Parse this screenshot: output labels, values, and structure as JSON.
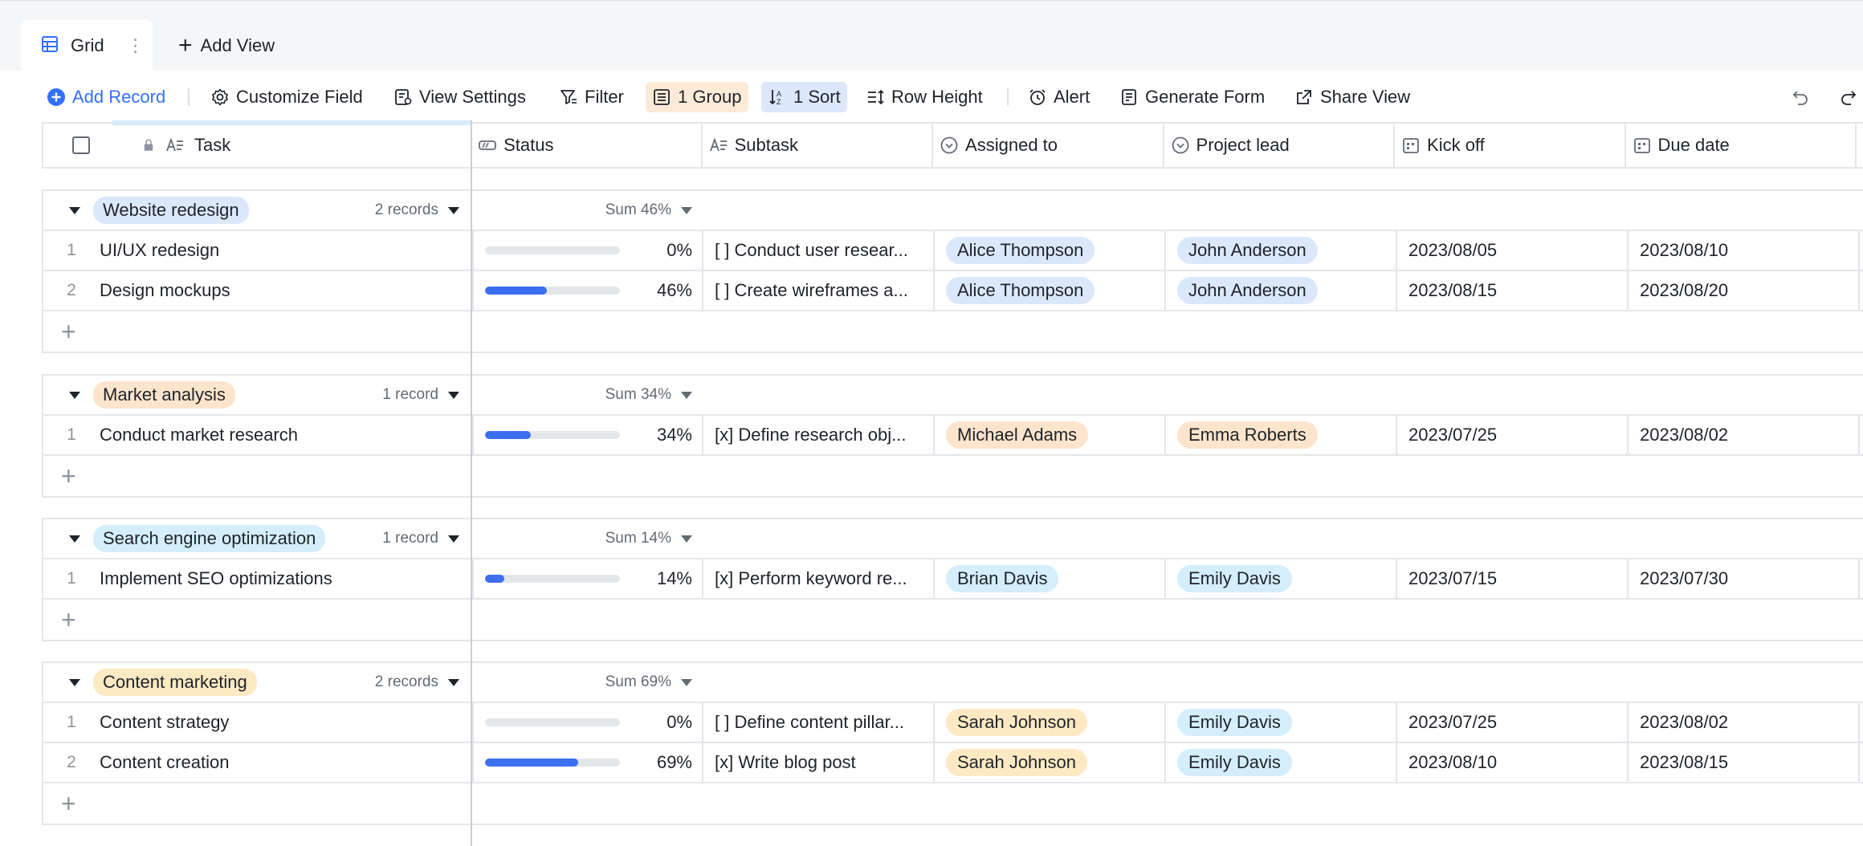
{
  "tabs": {
    "grid_label": "Grid",
    "more": "⋮",
    "add_view": "Add View"
  },
  "toolbar": {
    "add_record": "Add Record",
    "customize_field": "Customize Field",
    "view_settings": "View Settings",
    "filter": "Filter",
    "group": "1 Group",
    "sort": "1 Sort",
    "row_height": "Row Height",
    "alert": "Alert",
    "generate_form": "Generate Form",
    "share_view": "Share View"
  },
  "columns": {
    "task": "Task",
    "status": "Status",
    "subtask": "Subtask",
    "assigned_to": "Assigned to",
    "project_lead": "Project lead",
    "kick_off": "Kick off",
    "due_date": "Due date"
  },
  "colors": {
    "accent": "#3370ff",
    "progress": "#3c6ef0",
    "tag_blue": "#dbe8fb",
    "tag_orange": "#fde4cc",
    "tag_cyan": "#d4eefb",
    "tag_yellow": "#fde9c2"
  },
  "groups": [
    {
      "name": "Website redesign",
      "tag_color": "#dbe8fb",
      "count": "2 records",
      "sum": "Sum 46%",
      "rows": [
        {
          "num": "1",
          "task": "UI/UX redesign",
          "progress": 0,
          "pct": "0%",
          "subtask": "[ ] Conduct user resear...",
          "assigned": "Alice Thompson",
          "assigned_color": "#dbe8fb",
          "lead": "John Anderson",
          "lead_color": "#dbe8fb",
          "kick_off": "2023/08/05",
          "due": "2023/08/10"
        },
        {
          "num": "2",
          "task": "Design mockups",
          "progress": 46,
          "pct": "46%",
          "subtask": "[ ] Create wireframes a...",
          "assigned": "Alice Thompson",
          "assigned_color": "#dbe8fb",
          "lead": "John Anderson",
          "lead_color": "#dbe8fb",
          "kick_off": "2023/08/15",
          "due": "2023/08/20"
        }
      ]
    },
    {
      "name": "Market analysis",
      "tag_color": "#fde4cc",
      "count": "1 record",
      "sum": "Sum 34%",
      "rows": [
        {
          "num": "1",
          "task": "Conduct market research",
          "progress": 34,
          "pct": "34%",
          "subtask": "[x] Define research obj...",
          "assigned": "Michael Adams",
          "assigned_color": "#fde4cc",
          "lead": "Emma Roberts",
          "lead_color": "#fde4cc",
          "kick_off": "2023/07/25",
          "due": "2023/08/02"
        }
      ]
    },
    {
      "name": "Search engine optimization",
      "tag_color": "#d4eefb",
      "count": "1 record",
      "sum": "Sum 14%",
      "rows": [
        {
          "num": "1",
          "task": "Implement SEO optimizations",
          "progress": 14,
          "pct": "14%",
          "subtask": "[x] Perform keyword re...",
          "assigned": "Brian Davis",
          "assigned_color": "#d4eefb",
          "lead": "Emily Davis",
          "lead_color": "#d4eefb",
          "kick_off": "2023/07/15",
          "due": "2023/07/30"
        }
      ]
    },
    {
      "name": "Content marketing",
      "tag_color": "#fde9c2",
      "count": "2 records",
      "sum": "Sum 69%",
      "rows": [
        {
          "num": "1",
          "task": "Content strategy",
          "progress": 0,
          "pct": "0%",
          "subtask": "[ ] Define content pillar...",
          "assigned": "Sarah Johnson",
          "assigned_color": "#fde9c2",
          "lead": "Emily Davis",
          "lead_color": "#d4eefb",
          "kick_off": "2023/07/25",
          "due": "2023/08/02"
        },
        {
          "num": "2",
          "task": "Content creation",
          "progress": 69,
          "pct": "69%",
          "subtask": "[x] Write blog post",
          "assigned": "Sarah Johnson",
          "assigned_color": "#fde9c2",
          "lead": "Emily Davis",
          "lead_color": "#d4eefb",
          "kick_off": "2023/08/10",
          "due": "2023/08/15"
        }
      ]
    }
  ]
}
